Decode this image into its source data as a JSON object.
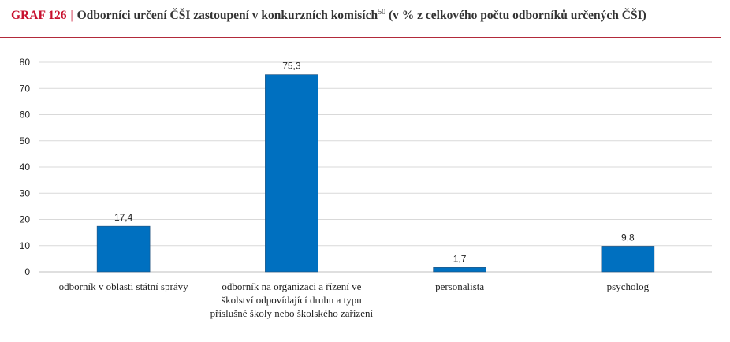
{
  "header": {
    "graf_label": "GRAF 126",
    "separator": "|",
    "title": "Odborníci určení ČŠI zastoupení v konkurzních komisích",
    "footnote": "50",
    "title_suffix": " (v % z celkového počtu odborníků určených ČŠI)"
  },
  "chart_data": {
    "type": "bar",
    "categories": [
      "odborník v oblasti státní správy",
      "odborník na organizaci a řízení ve školství odpovídající druhu a typu příslušné školy nebo školského zařízení",
      "personalista",
      "psycholog"
    ],
    "values": [
      17.4,
      75.3,
      1.7,
      9.8
    ],
    "value_labels": [
      "17,4",
      "75,3",
      "1,7",
      "9,8"
    ],
    "yticks": [
      0,
      10,
      20,
      30,
      40,
      50,
      60,
      70,
      80
    ],
    "ylim": [
      0,
      80
    ],
    "grid": true,
    "bar_color": "#0070c0",
    "xlabel": "",
    "ylabel": ""
  }
}
